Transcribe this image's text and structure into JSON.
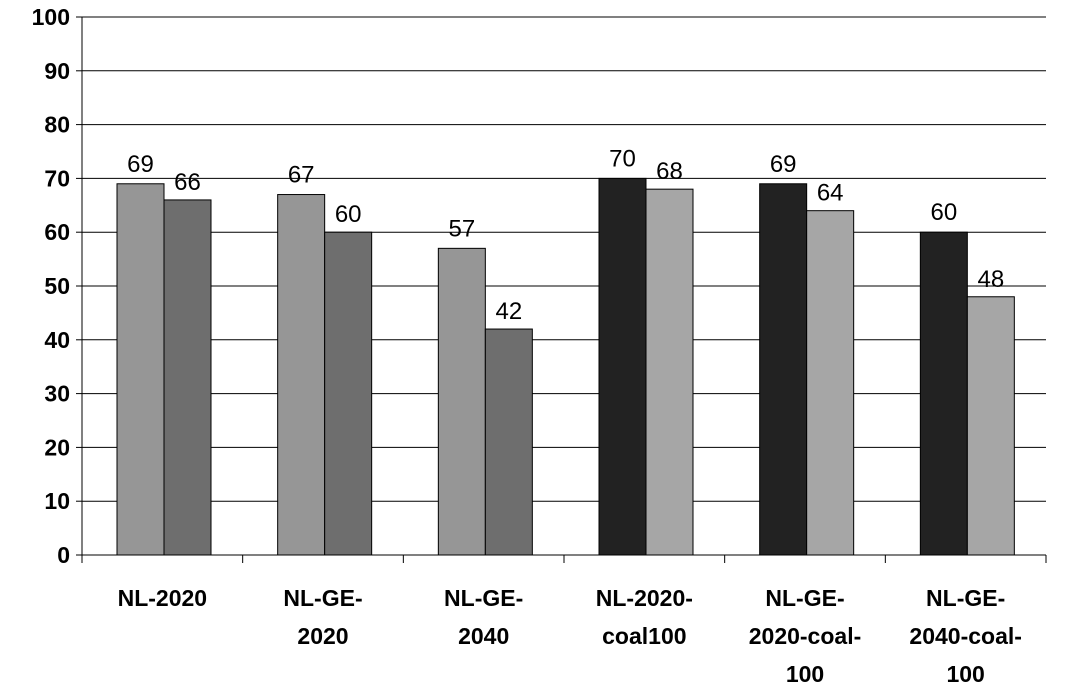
{
  "chart_data": {
    "type": "bar",
    "title": "",
    "xlabel": "",
    "ylabel": "",
    "ylim": [
      0,
      100
    ],
    "yticks": [
      0,
      10,
      20,
      30,
      40,
      50,
      60,
      70,
      80,
      90,
      100
    ],
    "grid": true,
    "legend": "none",
    "categories": [
      [
        "NL-2020"
      ],
      [
        "NL-GE-",
        "2020"
      ],
      [
        "NL-GE-",
        "2040"
      ],
      [
        "NL-2020-",
        "coal100"
      ],
      [
        "NL-GE-",
        "2020-coal-",
        "100"
      ],
      [
        "NL-GE-",
        "2040-coal-",
        "100"
      ]
    ],
    "series": [
      {
        "values": [
          69,
          67,
          57,
          70,
          69,
          60
        ]
      },
      {
        "values": [
          66,
          60,
          42,
          68,
          64,
          48
        ]
      }
    ],
    "bar_colors": [
      [
        "#969696",
        "#6e6e6e"
      ],
      [
        "#969696",
        "#6e6e6e"
      ],
      [
        "#969696",
        "#6e6e6e"
      ],
      [
        "#222222",
        "#a6a6a6"
      ],
      [
        "#222222",
        "#a6a6a6"
      ],
      [
        "#222222",
        "#a6a6a6"
      ]
    ],
    "data_labels": [
      [
        "69",
        "66"
      ],
      [
        "67",
        "60"
      ],
      [
        "57",
        "42"
      ],
      [
        "70",
        "68"
      ],
      [
        "69",
        "64"
      ],
      [
        "60",
        "48"
      ]
    ]
  }
}
